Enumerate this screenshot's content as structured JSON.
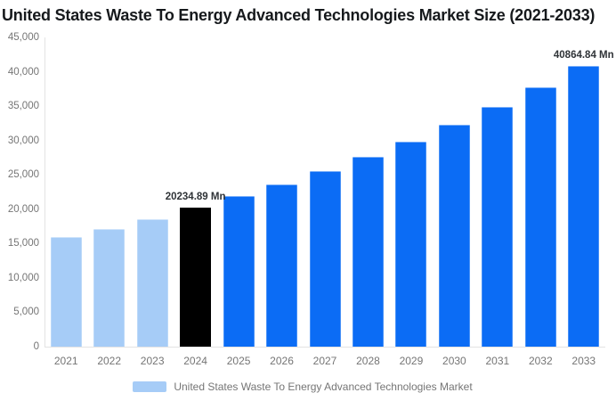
{
  "title": "United States Waste To Energy Advanced Technologies Market Size (2021-2033)",
  "legend": {
    "label": "United States Waste To Energy Advanced Technologies Market",
    "swatch_color": "#a6ccf7"
  },
  "colors": {
    "historical_bar": "#a6ccf7",
    "base_year_bar": "#000000",
    "forecast_bar": "#0b6cf5",
    "axis_line": "#e3e3e3",
    "tick_text": "#757575",
    "title_text": "#16191c",
    "data_label_text": "#2f3337"
  },
  "chart_data": {
    "type": "bar",
    "title": "United States Waste To Energy Advanced Technologies Market Size (2021-2033)",
    "categories": [
      "2021",
      "2022",
      "2023",
      "2024",
      "2025",
      "2026",
      "2027",
      "2028",
      "2029",
      "2030",
      "2031",
      "2032",
      "2033"
    ],
    "series": [
      {
        "name": "United States Waste To Energy Advanced Technologies Market",
        "values": [
          15900,
          17150,
          18600,
          20234.89,
          21870,
          23640,
          25560,
          27630,
          29880,
          32330,
          34900,
          37790,
          40864.84
        ]
      }
    ],
    "unit": "Mn",
    "bar_colors": [
      "#a6ccf7",
      "#a6ccf7",
      "#a6ccf7",
      "#000000",
      "#0b6cf5",
      "#0b6cf5",
      "#0b6cf5",
      "#0b6cf5",
      "#0b6cf5",
      "#0b6cf5",
      "#0b6cf5",
      "#0b6cf5",
      "#0b6cf5"
    ],
    "data_labels": [
      {
        "index": 3,
        "text": "20234.89 Mn"
      },
      {
        "index": 12,
        "text": "40864.84 Mn"
      }
    ],
    "xlabel": "",
    "ylabel": "",
    "ylim": [
      0,
      45000
    ],
    "ytick_interval": 5000,
    "ytick_labels": [
      "45,000",
      "40,000",
      "35,000",
      "30,000",
      "25,000",
      "20,000",
      "15,000",
      "10,000",
      "5,000",
      "0"
    ],
    "grid": false,
    "legend_position": "bottom"
  }
}
